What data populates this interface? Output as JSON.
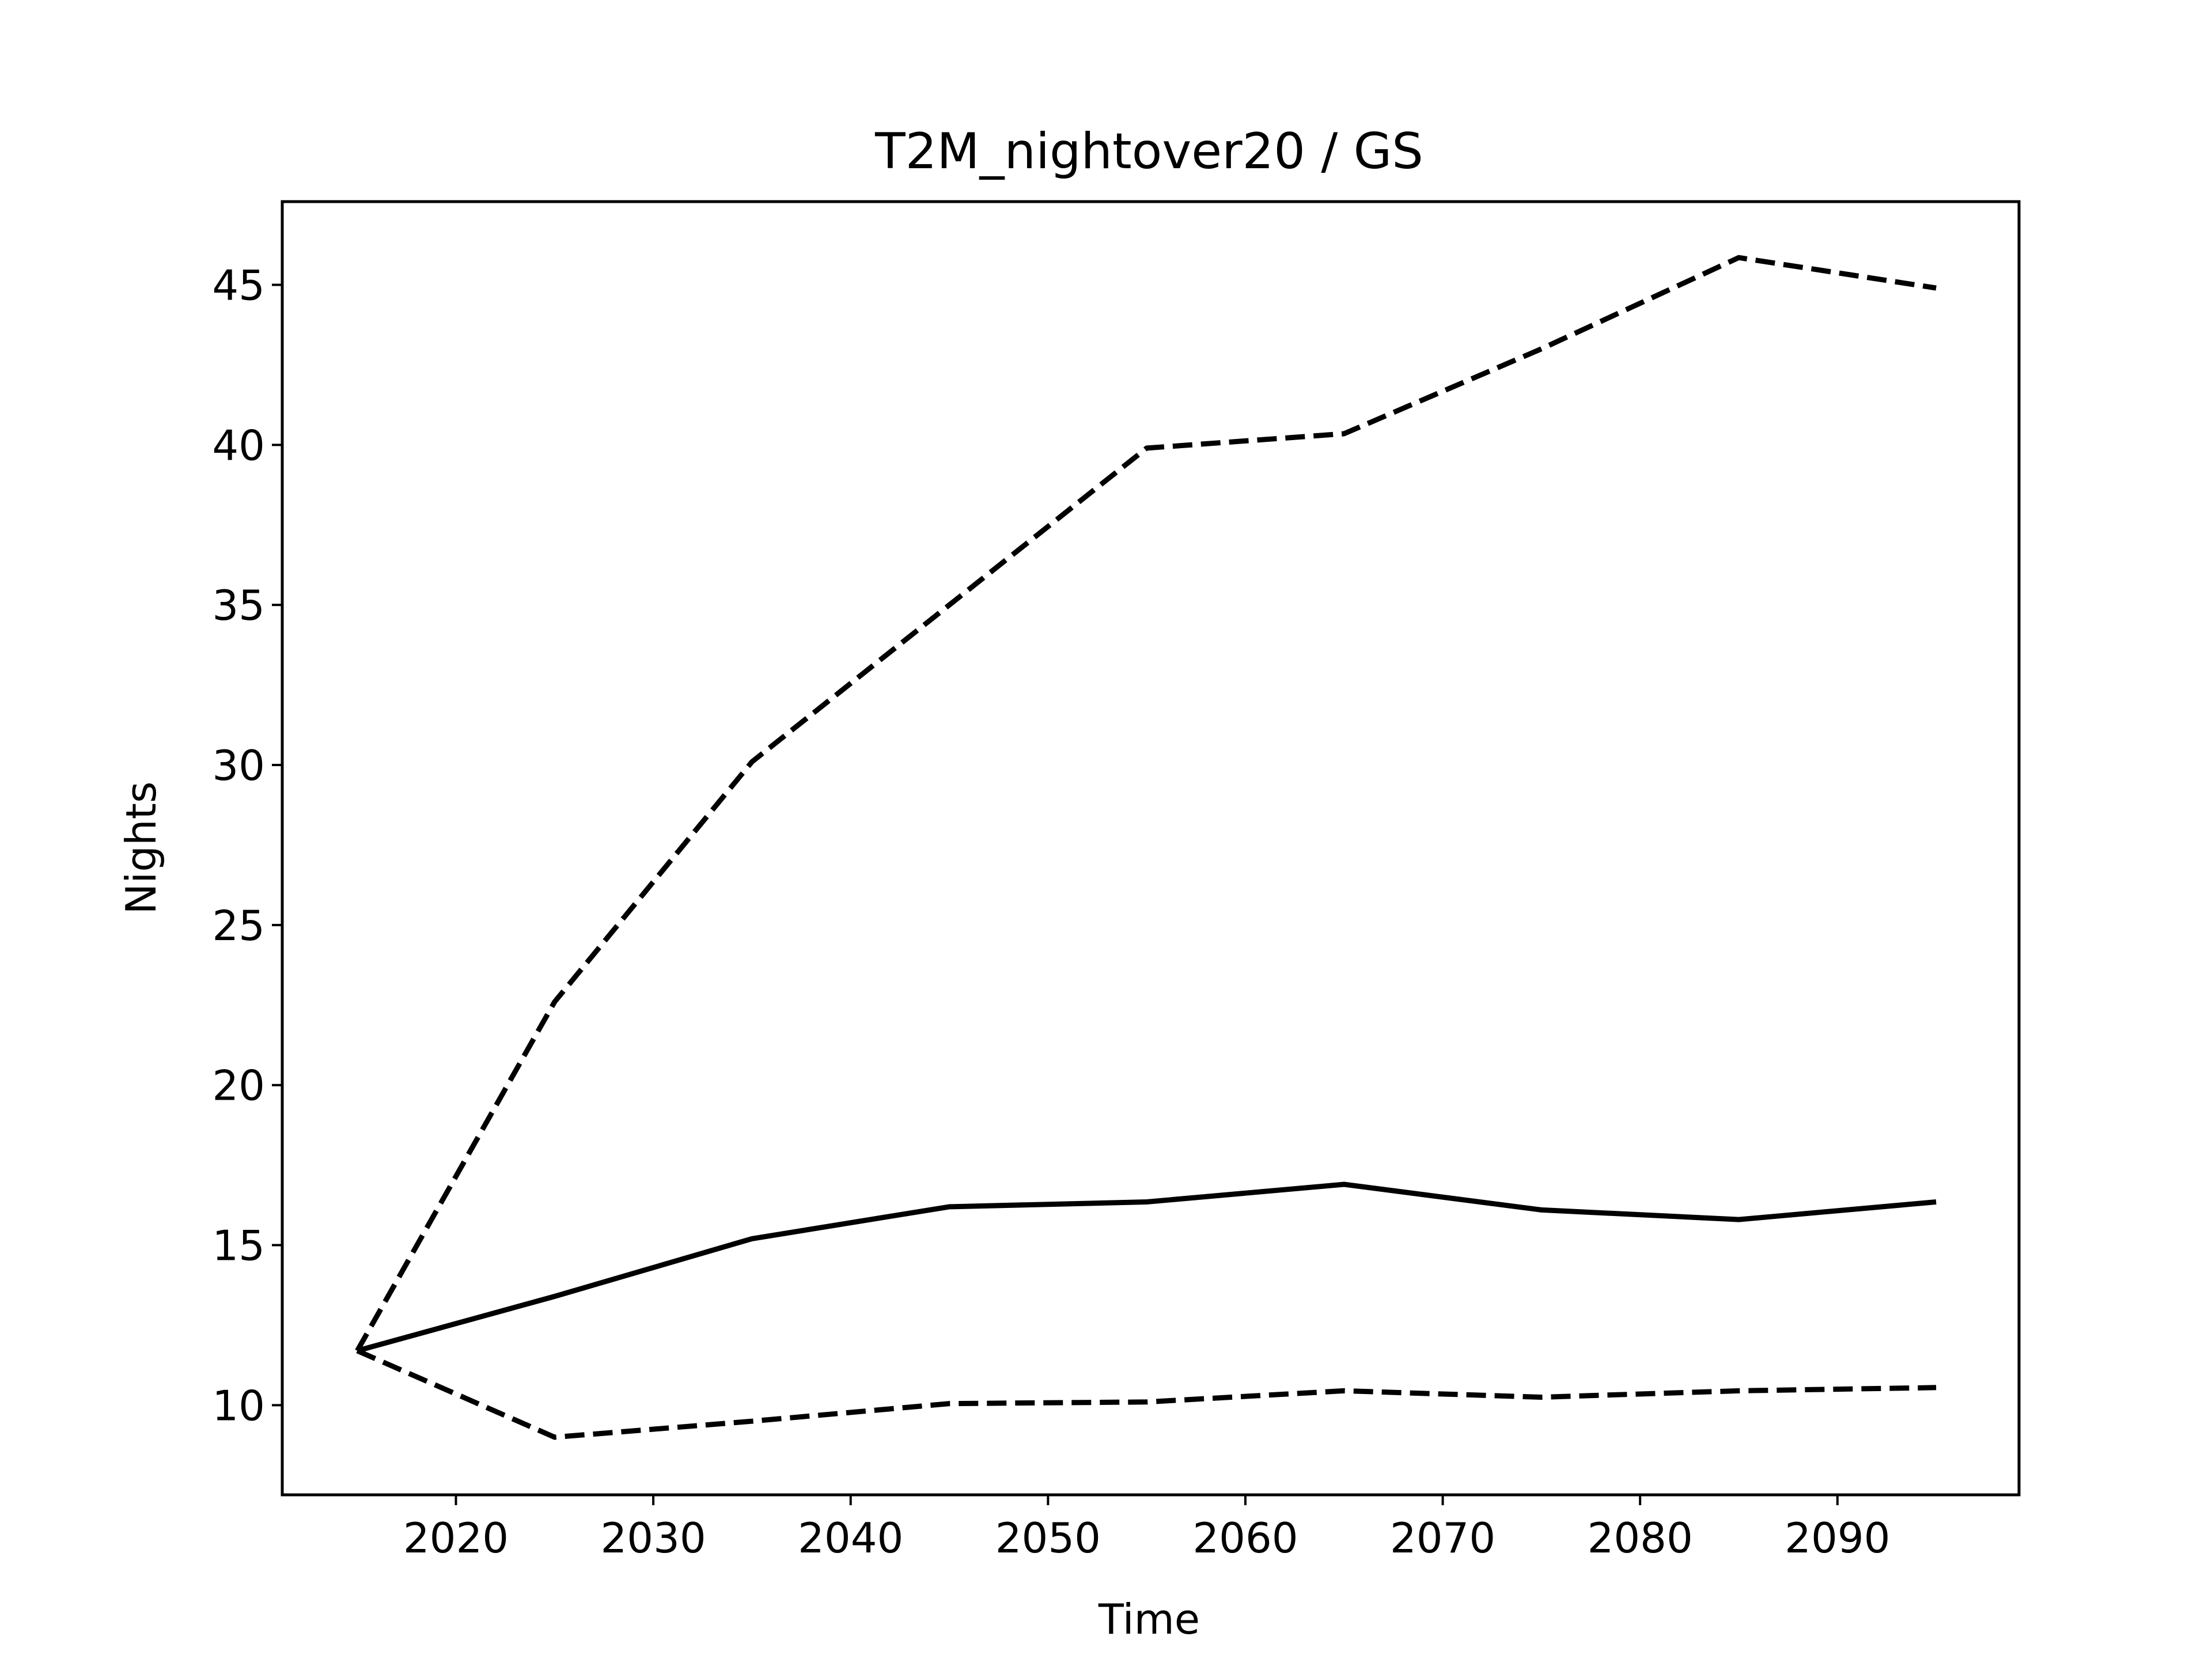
{
  "chart_data": {
    "type": "line",
    "title": "T2M_nightover20 / GS",
    "xlabel": "Time",
    "ylabel": "Nights",
    "xlim": [
      2011.2,
      2099.2
    ],
    "ylim": [
      7.2,
      47.6
    ],
    "xticks": [
      2020,
      2030,
      2040,
      2050,
      2060,
      2070,
      2080,
      2090
    ],
    "yticks": [
      10,
      15,
      20,
      25,
      30,
      35,
      40,
      45
    ],
    "grid": false,
    "x": [
      2015,
      2025,
      2035,
      2045,
      2055,
      2065,
      2075,
      2085,
      2095
    ],
    "series": [
      {
        "style": "solid",
        "color": "#000000",
        "values": [
          11.7,
          13.4,
          15.2,
          16.2,
          16.35,
          16.9,
          16.1,
          15.8,
          16.35
        ]
      },
      {
        "style": "dashed",
        "color": "#000000",
        "values": [
          11.7,
          22.6,
          30.1,
          35.0,
          39.9,
          40.35,
          43.0,
          45.85,
          44.9
        ]
      },
      {
        "style": "dashed",
        "color": "#000000",
        "values": [
          11.7,
          9.0,
          9.5,
          10.05,
          10.1,
          10.45,
          10.25,
          10.45,
          10.55
        ]
      }
    ]
  }
}
